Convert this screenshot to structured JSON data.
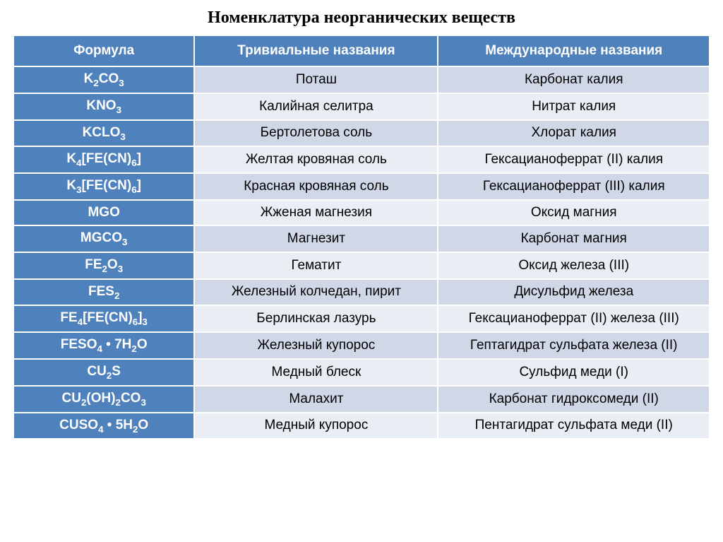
{
  "title": "Номенклатура неорганических веществ",
  "columns": [
    "Формула",
    "Тривиальные названия",
    "Международные названия"
  ],
  "rows": [
    {
      "formula": "K<sub>2</sub>CO<sub>3</sub>",
      "trivial": "Поташ",
      "international": "Карбонат калия"
    },
    {
      "formula": "KNO<sub>3</sub>",
      "trivial": "Калийная селитра",
      "international": "Нитрат калия"
    },
    {
      "formula": "KClO<sub>3</sub>",
      "trivial": "Бертолетова соль",
      "international": "Хлорат калия"
    },
    {
      "formula": "K<sub>4</sub>[Fe(CN)<sub>6</sub>]",
      "trivial": "Желтая кровяная соль",
      "international": "Гексацианоферрат (II) калия"
    },
    {
      "formula": "K<sub>3</sub>[Fe(CN)<sub>6</sub>]",
      "trivial": "Красная кровяная соль",
      "international": "Гексацианоферрат (III) калия"
    },
    {
      "formula": "MgO",
      "trivial": "Жженая магнезия",
      "international": "Оксид магния"
    },
    {
      "formula": "MgCO<sub>3</sub>",
      "trivial": "Магнезит",
      "international": "Карбонат магния"
    },
    {
      "formula": "Fe<sub>2</sub>O<sub>3</sub>",
      "trivial": "Гематит",
      "international": "Оксид железа (III)"
    },
    {
      "formula": "FeS<sub>2</sub>",
      "trivial": "Железный колчедан, пирит",
      "international": "Дисульфид железа"
    },
    {
      "formula": "Fe<sub>4</sub>[Fe(CN)<sub>6</sub>]<sub>3</sub>",
      "trivial": "Берлинская лазурь",
      "international": "Гексацианоферрат (II) железа (III)"
    },
    {
      "formula": "FeSO<sub>4</sub> • 7H<sub>2</sub>O",
      "trivial": "Железный купорос",
      "international": "Гептагидрат сульфата железа (II)"
    },
    {
      "formula": "Cu<sub>2</sub>S",
      "trivial": "Медный блеск",
      "international": "Сульфид меди (I)"
    },
    {
      "formula": "Cu<sub>2</sub>(OH)<sub>2</sub>CO<sub>3</sub>",
      "trivial": "Малахит",
      "international": "Карбонат гидроксомеди (II)"
    },
    {
      "formula": "CuSO<sub>4</sub> • 5H<sub>2</sub>O",
      "trivial": "Медный купорос",
      "international": "Пентагидрат сульфата меди (II)"
    }
  ],
  "colors": {
    "header_bg": "#4f81bd",
    "header_fg": "#ffffff",
    "row_even_bg": "#d0d8e8",
    "row_odd_bg": "#e9edf4",
    "text": "#000000",
    "border": "#ffffff"
  },
  "fontsize": {
    "title": 24,
    "header": 19,
    "cell": 19
  }
}
